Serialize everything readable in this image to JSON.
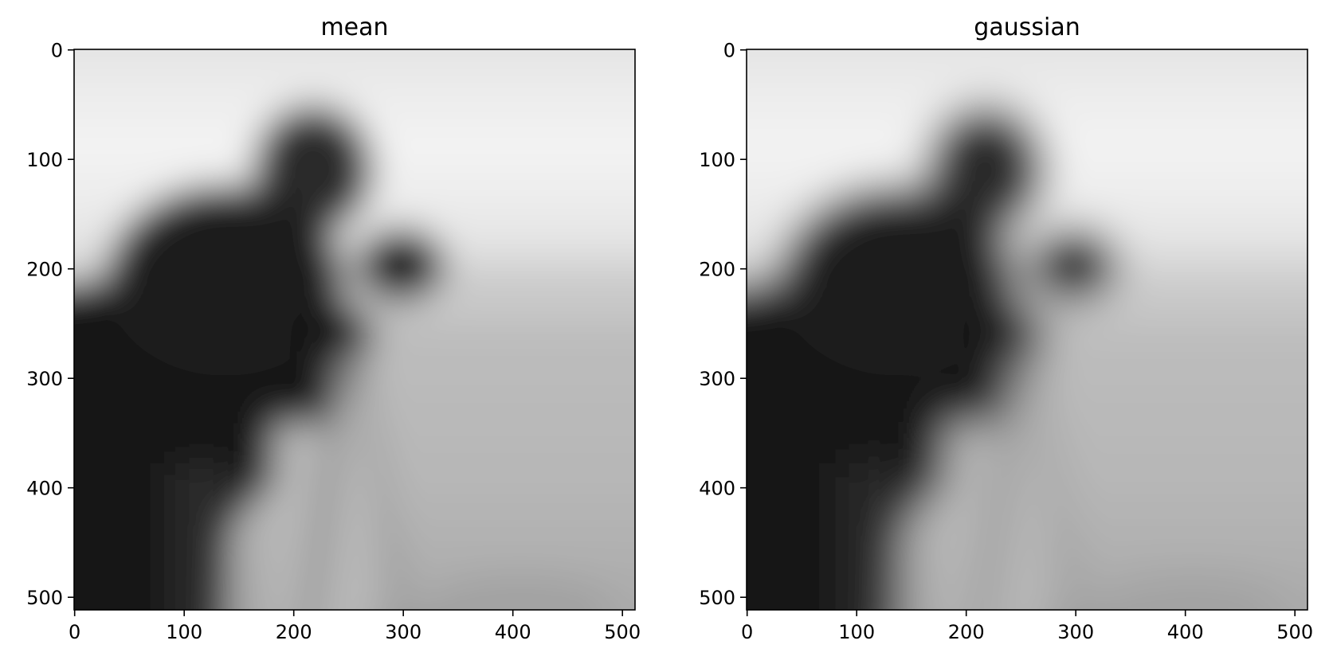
{
  "chart_data": [
    {
      "type": "heatmap",
      "title": "mean",
      "xlabel": "",
      "ylabel": "",
      "xlim": [
        0,
        511
      ],
      "ylim": [
        511,
        0
      ],
      "xticks": [
        0,
        100,
        200,
        300,
        400,
        500
      ],
      "yticks": [
        0,
        100,
        200,
        300,
        400,
        500
      ],
      "xtick_labels": [
        "0",
        "100",
        "200",
        "300",
        "400",
        "500"
      ],
      "ytick_labels": [
        "0",
        "100",
        "200",
        "300",
        "400",
        "500"
      ],
      "colormap": "gray",
      "grid": false,
      "image_description": "blurred grayscale photograph of a photographer with a camera on a tripod (mean filter)"
    },
    {
      "type": "heatmap",
      "title": "gaussian",
      "xlabel": "",
      "ylabel": "",
      "xlim": [
        0,
        511
      ],
      "ylim": [
        511,
        0
      ],
      "xticks": [
        0,
        100,
        200,
        300,
        400,
        500
      ],
      "yticks": [
        0,
        100,
        200,
        300,
        400,
        500
      ],
      "xtick_labels": [
        "0",
        "100",
        "200",
        "300",
        "400",
        "500"
      ],
      "ytick_labels": [
        "0",
        "100",
        "200",
        "300",
        "400",
        "500"
      ],
      "colormap": "gray",
      "grid": false,
      "image_description": "blurred grayscale photograph of a photographer with a camera on a tripod (gaussian filter)"
    }
  ]
}
